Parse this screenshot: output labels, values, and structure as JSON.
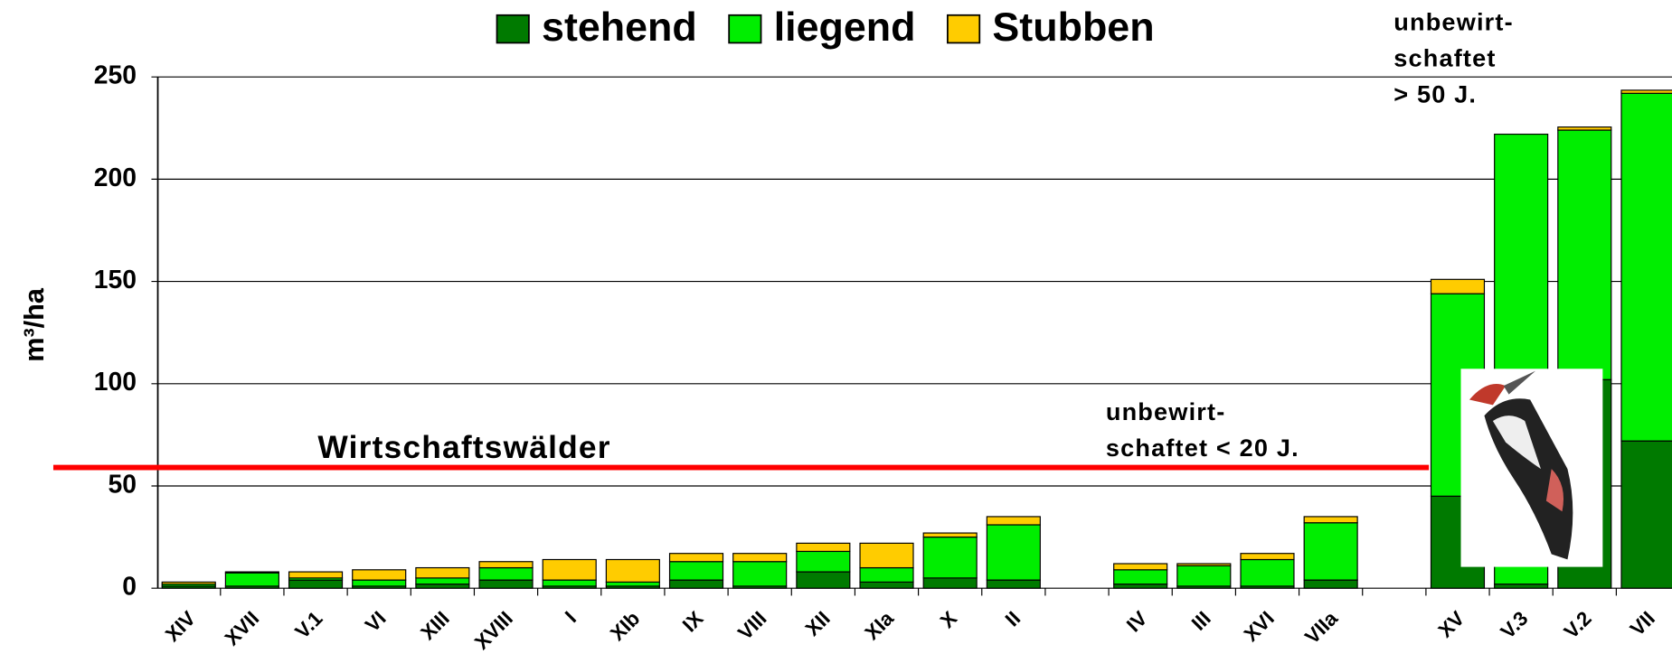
{
  "chart_data": {
    "type": "stacked_bar",
    "ylabel": "m³/ha",
    "categories": [
      "XIV",
      "XVII",
      "V.1",
      "VI",
      "XIII",
      "XVIII",
      "I",
      "XIb",
      "IX",
      "VIII",
      "XII",
      "XIa",
      "X",
      "II",
      null,
      "IV",
      "III",
      "XVI",
      "VIIa",
      null,
      "XV",
      "V.3",
      "V.2",
      "VII"
    ],
    "series": [
      {
        "name": "stehend",
        "color": "#007a00",
        "values": [
          1,
          1,
          4,
          1,
          2,
          4,
          1,
          1,
          4,
          1,
          8,
          3,
          5,
          4,
          null,
          2,
          1,
          1,
          4,
          null,
          45,
          2,
          102,
          72
        ]
      },
      {
        "name": "liegend",
        "color": "#00ee00",
        "values": [
          1,
          6.5,
          1,
          3,
          3,
          6,
          3,
          2,
          9,
          12,
          10,
          7,
          20,
          27,
          null,
          7,
          10,
          13,
          28,
          null,
          99,
          220,
          122,
          170
        ]
      },
      {
        "name": "Stubben",
        "color": "#ffcc00",
        "values": [
          1,
          0.5,
          3,
          5,
          5,
          3,
          10,
          11,
          4,
          4,
          4,
          12,
          2,
          4,
          null,
          3,
          1,
          3,
          3,
          null,
          7,
          0,
          1.5,
          1.5
        ]
      }
    ],
    "ylim": [
      0,
      250
    ],
    "yticks": [
      0,
      50,
      100,
      150,
      200,
      250
    ],
    "grid": true,
    "reference_line": {
      "value": 59,
      "color": "#ff0000"
    },
    "annotations": [
      {
        "lines": [
          "Wirtschaftswälder"
        ]
      },
      {
        "lines": [
          "unbewirt-",
          "schaftet < 20 J."
        ]
      },
      {
        "lines": [
          "unbewirt-",
          "schaftet",
          "> 50 J."
        ]
      }
    ]
  }
}
